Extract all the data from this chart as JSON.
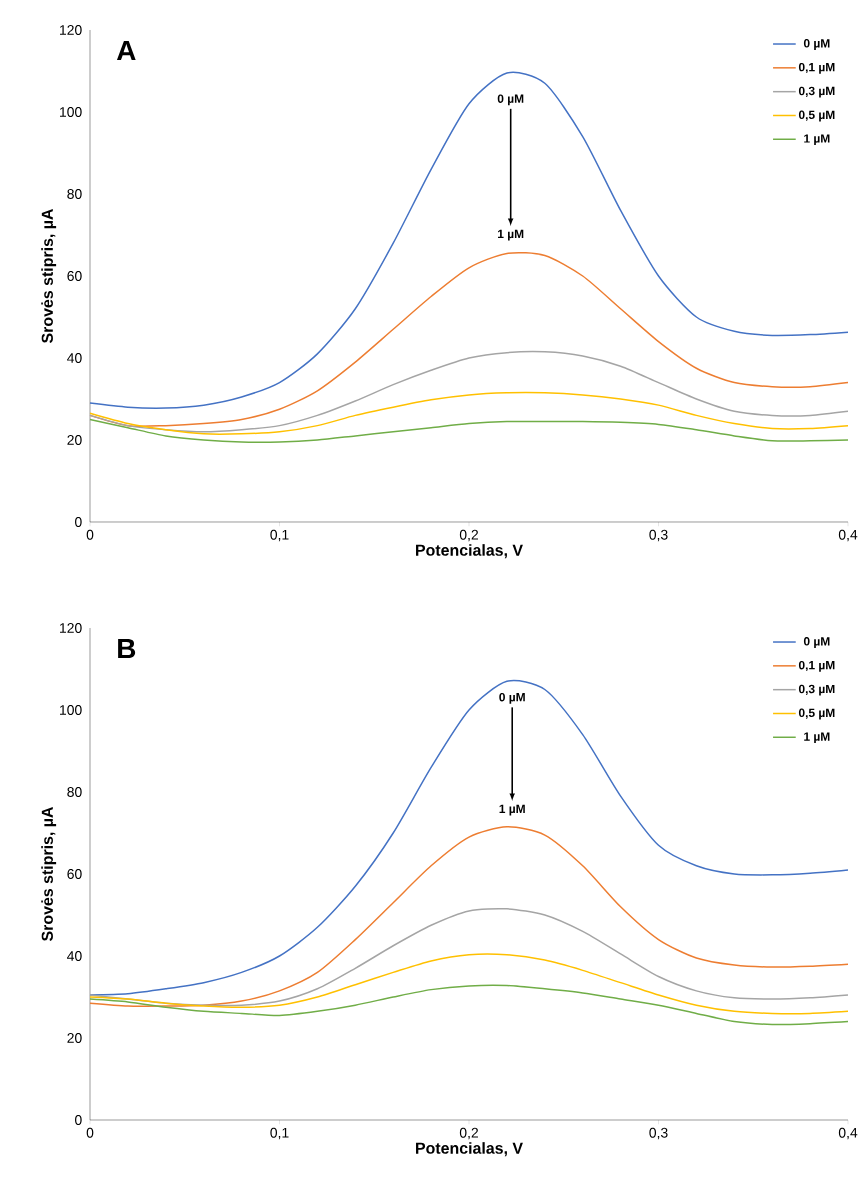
{
  "chart_data": [
    {
      "type": "line",
      "xlabel": "Potencialas, V",
      "ylabel": "Srovės stipris, µA",
      "legend": "top right",
      "annotations": [
        "A",
        "0 µM",
        "1 µM"
      ],
      "x": [
        0,
        0.02,
        0.04,
        0.06,
        0.08,
        0.1,
        0.12,
        0.14,
        0.16,
        0.18,
        0.2,
        0.22,
        0.24,
        0.26,
        0.28,
        0.3,
        0.32,
        0.34,
        0.36,
        0.38,
        0.4
      ],
      "series": [
        {
          "name": "0 µM",
          "color": "#4472c4",
          "values": [
            29,
            28,
            27.8,
            28.5,
            30.5,
            34,
            41,
            52,
            68,
            86,
            102,
            109.5,
            107,
            94,
            76,
            60,
            50,
            46.5,
            45.5,
            45.7,
            46.3
          ]
        },
        {
          "name": "0,1 µM",
          "color": "#ed7d31",
          "values": [
            26,
            23.5,
            23.5,
            24,
            25,
            27.5,
            32,
            39,
            47,
            55,
            62,
            65.5,
            65,
            60,
            52,
            44,
            37.5,
            34,
            33,
            33,
            34
          ]
        },
        {
          "name": "0,3 µM",
          "color": "#a5a5a5",
          "values": [
            26,
            23.5,
            22.5,
            22,
            22.5,
            23.5,
            26,
            29.5,
            33.5,
            37,
            40,
            41.3,
            41.5,
            40.5,
            38,
            34,
            30,
            27,
            26,
            26,
            27
          ]
        },
        {
          "name": "0,5 µM",
          "color": "#ffc000",
          "values": [
            26.5,
            24,
            22.5,
            21.5,
            21.5,
            22,
            23.5,
            26,
            28,
            29.8,
            31,
            31.5,
            31.5,
            31,
            30,
            28.5,
            26,
            24,
            22.8,
            22.8,
            23.5
          ]
        },
        {
          "name": "1 µM",
          "color": "#70ad47",
          "values": [
            25,
            23,
            21,
            20,
            19.5,
            19.5,
            20,
            21,
            22,
            23,
            24,
            24.5,
            24.5,
            24.5,
            24.3,
            23.8,
            22.5,
            21,
            19.8,
            19.8,
            20
          ]
        }
      ],
      "xlim": [
        0,
        0.4
      ],
      "ylim": [
        0,
        120
      ],
      "xticks": [
        0,
        {
          "value": 0.1,
          "label": "0,1"
        },
        {
          "value": 0.2,
          "label": "0,2"
        },
        {
          "value": 0.3,
          "label": "0,3"
        },
        {
          "value": 0.4,
          "label": "0,4"
        }
      ],
      "yticks": [
        0,
        20,
        40,
        60,
        80,
        100,
        120
      ]
    },
    {
      "type": "line",
      "xlabel": "Potencialas, V",
      "ylabel": "Srovės stipris, µA",
      "legend": "top right",
      "annotations": [
        "B",
        "0 µM",
        "1 µM"
      ],
      "x": [
        0,
        0.02,
        0.04,
        0.06,
        0.08,
        0.1,
        0.12,
        0.14,
        0.16,
        0.18,
        0.2,
        0.22,
        0.24,
        0.26,
        0.28,
        0.3,
        0.32,
        0.34,
        0.36,
        0.38,
        0.4
      ],
      "series": [
        {
          "name": "0 µM",
          "color": "#4472c4",
          "values": [
            30.5,
            30.8,
            32,
            33.5,
            36,
            40,
            47,
            57,
            70,
            86,
            100,
            107,
            105,
            94,
            79,
            67,
            62,
            60,
            59.8,
            60.2,
            61
          ]
        },
        {
          "name": "0,1 µM",
          "color": "#ed7d31",
          "values": [
            28.5,
            27.8,
            27.8,
            28,
            29,
            31.5,
            36,
            44,
            53,
            62,
            69,
            71.5,
            69.5,
            62,
            52,
            44,
            39.5,
            37.8,
            37.3,
            37.5,
            38
          ]
        },
        {
          "name": "0,3 µM",
          "color": "#a5a5a5",
          "values": [
            30.5,
            29.5,
            28.5,
            28,
            28,
            29,
            32,
            37,
            42.5,
            47.5,
            51,
            51.5,
            50,
            46,
            40.5,
            35,
            31.5,
            29.8,
            29.5,
            29.8,
            30.5
          ]
        },
        {
          "name": "0,5 µM",
          "color": "#ffc000",
          "values": [
            30,
            29.5,
            28.5,
            27.8,
            27.5,
            28,
            30,
            33,
            36,
            38.8,
            40.3,
            40.3,
            39,
            36.5,
            33.5,
            30.5,
            28,
            26.5,
            26,
            26,
            26.5
          ]
        },
        {
          "name": "1 µM",
          "color": "#70ad47",
          "values": [
            29.5,
            28.8,
            27.5,
            26.5,
            26,
            25.5,
            26.5,
            28,
            30,
            31.8,
            32.7,
            32.8,
            32,
            31,
            29.5,
            28,
            26,
            24,
            23.3,
            23.5,
            24
          ]
        }
      ],
      "xlim": [
        0,
        0.4
      ],
      "ylim": [
        0,
        120
      ],
      "xticks": [
        0,
        {
          "value": 0.1,
          "label": "0,1"
        },
        {
          "value": 0.2,
          "label": "0,2"
        },
        {
          "value": 0.3,
          "label": "0,3"
        },
        {
          "value": 0.4,
          "label": "0,4"
        }
      ],
      "yticks": [
        0,
        20,
        40,
        60,
        80,
        100,
        120
      ]
    }
  ]
}
